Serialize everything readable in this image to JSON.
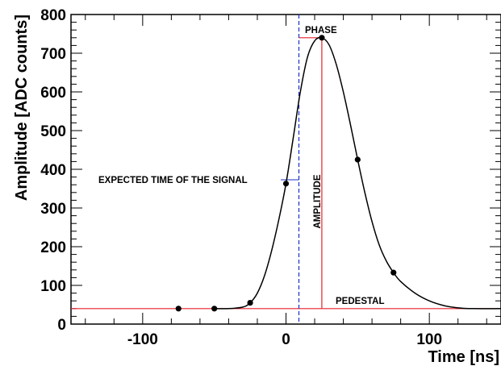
{
  "chart_data": {
    "type": "line",
    "title": "",
    "xlabel": "Time [ns]",
    "ylabel": "Amplitude [ADC counts]",
    "xlim": [
      -150,
      150
    ],
    "ylim": [
      0,
      800
    ],
    "xticks": [
      -100,
      0,
      100
    ],
    "yticks": [
      0,
      100,
      200,
      300,
      400,
      500,
      600,
      700,
      800
    ],
    "grid": false,
    "series": [
      {
        "kind": "points",
        "color": "#000000",
        "x": [
          -75,
          -50,
          -25,
          0,
          25,
          50,
          75
        ],
        "y": [
          40,
          40,
          55,
          363,
          740,
          425,
          133
        ]
      },
      {
        "kind": "fit-curve",
        "color": "#000000",
        "x": [
          -50,
          -40,
          -30,
          -25,
          -20,
          -15,
          -10,
          -5,
          0,
          5,
          10,
          15,
          20,
          25,
          30,
          35,
          40,
          45,
          50,
          55,
          60,
          65,
          70,
          75,
          80,
          90,
          100,
          110,
          120,
          130,
          150
        ],
        "y": [
          40,
          40,
          44,
          55,
          80,
          125,
          190,
          270,
          363,
          480,
          600,
          690,
          732,
          740,
          722,
          672,
          600,
          515,
          425,
          340,
          265,
          205,
          163,
          133,
          110,
          80,
          60,
          48,
          42,
          40,
          40
        ]
      }
    ],
    "reference_lines": {
      "pedestal": 40,
      "expected_time": 9,
      "peak_time": 25,
      "peak_amplitude": 740
    },
    "annotations": {
      "phase": "PHASE",
      "expected": "EXPECTED TIME OF THE SIGNAL",
      "amplitude": "AMPLITUDE",
      "pedestal": "PEDESTAL"
    },
    "colors": {
      "curve": "#000000",
      "reference": "#e8202a",
      "expected": "#1a2fc8",
      "frame": "#000000"
    }
  }
}
